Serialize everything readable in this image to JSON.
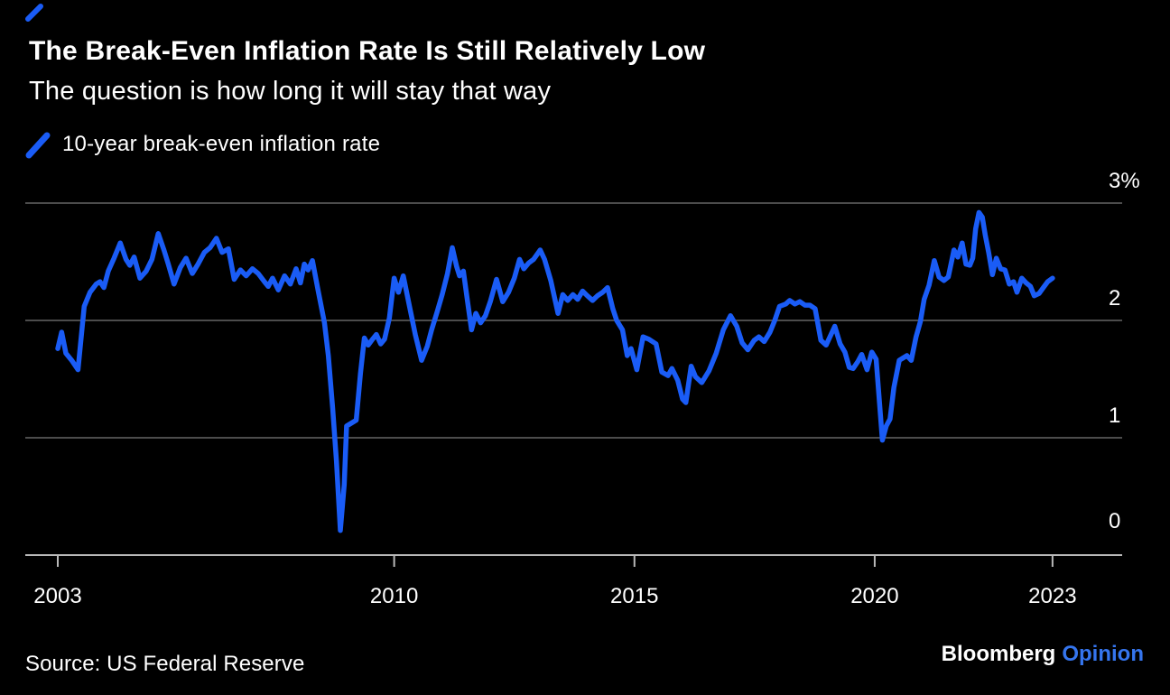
{
  "header": {
    "title": "The Break-Even Inflation Rate Is Still Relatively Low",
    "subtitle": "The question is how long it will stay that way"
  },
  "legend": {
    "label": "10-year break-even inflation rate"
  },
  "footer": {
    "source": "Source: US Federal Reserve",
    "brand": "Bloomberg",
    "brand_suffix": "Opinion"
  },
  "colors": {
    "background": "#000000",
    "line": "#1A5CF6",
    "grid": "#666666",
    "axis": "#B9B9B9",
    "text": "#FFFFFF",
    "opinion_blue": "#3575EE"
  },
  "chart_data": {
    "type": "line",
    "title": "The Break-Even Inflation Rate Is Still Relatively Low",
    "subtitle": "The question is how long it will stay that way",
    "xlabel": "",
    "ylabel": "",
    "xlim": [
      2002.8,
      2023.8
    ],
    "ylim": [
      0,
      3.1
    ],
    "grid": "horizontal",
    "legend_position": "top-left",
    "x_ticks": [
      {
        "label": "2003",
        "year": 2003
      },
      {
        "label": "2010",
        "year": 2010
      },
      {
        "label": "2015",
        "year": 2015
      },
      {
        "label": "2020",
        "year": 2020
      },
      {
        "label": "2023",
        "year": 2023.7
      }
    ],
    "y_ticks": [
      {
        "label": "3%",
        "value": 3
      },
      {
        "label": "2",
        "value": 2
      },
      {
        "label": "1",
        "value": 1
      },
      {
        "label": "0",
        "value": 0
      }
    ],
    "series": [
      {
        "name": "10-year break-even inflation rate",
        "x": [
          2003.0,
          2003.08,
          2003.17,
          2003.29,
          2003.42,
          2003.55,
          2003.67,
          2003.8,
          2003.88,
          2003.96,
          2004.05,
          2004.17,
          2004.3,
          2004.42,
          2004.5,
          2004.59,
          2004.71,
          2004.84,
          2004.96,
          2005.09,
          2005.21,
          2005.3,
          2005.42,
          2005.55,
          2005.67,
          2005.8,
          2005.92,
          2006.05,
          2006.17,
          2006.3,
          2006.42,
          2006.55,
          2006.67,
          2006.8,
          2006.92,
          2007.05,
          2007.17,
          2007.3,
          2007.38,
          2007.47,
          2007.59,
          2007.72,
          2007.84,
          2007.96,
          2008.05,
          2008.13,
          2008.21,
          2008.3,
          2008.42,
          2008.55,
          2008.63,
          2008.72,
          2008.8,
          2008.88,
          2008.96,
          2009.01,
          2009.13,
          2009.21,
          2009.3,
          2009.38,
          2009.46,
          2009.55,
          2009.63,
          2009.72,
          2009.8,
          2009.9,
          2010.0,
          2010.09,
          2010.19,
          2010.32,
          2010.44,
          2010.57,
          2010.69,
          2010.78,
          2010.9,
          2011.0,
          2011.11,
          2011.21,
          2011.3,
          2011.36,
          2011.44,
          2011.53,
          2011.61,
          2011.7,
          2011.8,
          2011.9,
          2012.0,
          2012.13,
          2012.26,
          2012.38,
          2012.5,
          2012.61,
          2012.7,
          2012.8,
          2012.9,
          2013.04,
          2013.13,
          2013.26,
          2013.41,
          2013.51,
          2013.61,
          2013.72,
          2013.82,
          2013.92,
          2014.02,
          2014.13,
          2014.23,
          2014.34,
          2014.44,
          2014.55,
          2014.63,
          2014.75,
          2014.85,
          2014.93,
          2015.05,
          2015.18,
          2015.3,
          2015.45,
          2015.57,
          2015.7,
          2015.78,
          2015.9,
          2016.0,
          2016.07,
          2016.18,
          2016.27,
          2016.4,
          2016.55,
          2016.7,
          2016.85,
          2017.0,
          2017.13,
          2017.24,
          2017.36,
          2017.49,
          2017.59,
          2017.7,
          2017.82,
          2017.92,
          2018.02,
          2018.15,
          2018.23,
          2018.34,
          2018.44,
          2018.55,
          2018.65,
          2018.76,
          2018.88,
          2018.99,
          2019.09,
          2019.17,
          2019.28,
          2019.38,
          2019.47,
          2019.55,
          2019.65,
          2019.73,
          2019.84,
          2019.94,
          2020.03,
          2020.1,
          2020.16,
          2020.24,
          2020.32,
          2020.4,
          2020.51,
          2020.59,
          2020.67,
          2020.76,
          2020.86,
          2020.95,
          2021.03,
          2021.13,
          2021.24,
          2021.34,
          2021.44,
          2021.53,
          2021.65,
          2021.73,
          2021.82,
          2021.9,
          2021.98,
          2022.04,
          2022.1,
          2022.17,
          2022.24,
          2022.3,
          2022.37,
          2022.45,
          2022.53,
          2022.62,
          2022.71,
          2022.8,
          2022.89,
          2022.96,
          2023.06,
          2023.15,
          2023.24,
          2023.32,
          2023.42,
          2023.51,
          2023.6,
          2023.7
        ],
        "y": [
          1.76,
          1.9,
          1.72,
          1.66,
          1.58,
          2.12,
          2.24,
          2.31,
          2.33,
          2.28,
          2.42,
          2.53,
          2.66,
          2.52,
          2.47,
          2.54,
          2.36,
          2.42,
          2.52,
          2.74,
          2.6,
          2.48,
          2.31,
          2.45,
          2.53,
          2.4,
          2.48,
          2.58,
          2.62,
          2.7,
          2.58,
          2.61,
          2.35,
          2.43,
          2.38,
          2.44,
          2.4,
          2.33,
          2.29,
          2.36,
          2.26,
          2.38,
          2.31,
          2.44,
          2.32,
          2.48,
          2.43,
          2.51,
          2.25,
          1.98,
          1.7,
          1.25,
          0.8,
          0.21,
          0.6,
          1.1,
          1.13,
          1.15,
          1.55,
          1.85,
          1.79,
          1.84,
          1.88,
          1.8,
          1.84,
          2.02,
          2.36,
          2.24,
          2.38,
          2.12,
          1.88,
          1.66,
          1.78,
          1.92,
          2.08,
          2.22,
          2.4,
          2.62,
          2.46,
          2.38,
          2.42,
          2.15,
          1.92,
          2.06,
          1.98,
          2.04,
          2.16,
          2.35,
          2.16,
          2.24,
          2.36,
          2.52,
          2.44,
          2.49,
          2.52,
          2.6,
          2.52,
          2.34,
          2.06,
          2.22,
          2.17,
          2.22,
          2.18,
          2.25,
          2.21,
          2.17,
          2.21,
          2.24,
          2.28,
          2.1,
          2.0,
          1.92,
          1.7,
          1.76,
          1.58,
          1.86,
          1.84,
          1.8,
          1.56,
          1.53,
          1.59,
          1.49,
          1.33,
          1.3,
          1.61,
          1.52,
          1.47,
          1.57,
          1.72,
          1.92,
          2.04,
          1.95,
          1.81,
          1.75,
          1.83,
          1.86,
          1.82,
          1.9,
          2.0,
          2.12,
          2.14,
          2.17,
          2.14,
          2.16,
          2.13,
          2.13,
          2.1,
          1.83,
          1.79,
          1.88,
          1.95,
          1.8,
          1.73,
          1.6,
          1.59,
          1.65,
          1.71,
          1.58,
          1.73,
          1.67,
          1.3,
          0.98,
          1.1,
          1.16,
          1.43,
          1.66,
          1.68,
          1.7,
          1.66,
          1.86,
          1.99,
          2.18,
          2.3,
          2.51,
          2.37,
          2.34,
          2.37,
          2.6,
          2.54,
          2.66,
          2.48,
          2.47,
          2.53,
          2.78,
          2.92,
          2.88,
          2.73,
          2.58,
          2.39,
          2.53,
          2.44,
          2.43,
          2.31,
          2.33,
          2.24,
          2.36,
          2.32,
          2.29,
          2.21,
          2.23,
          2.28,
          2.33,
          2.36
        ]
      }
    ]
  }
}
